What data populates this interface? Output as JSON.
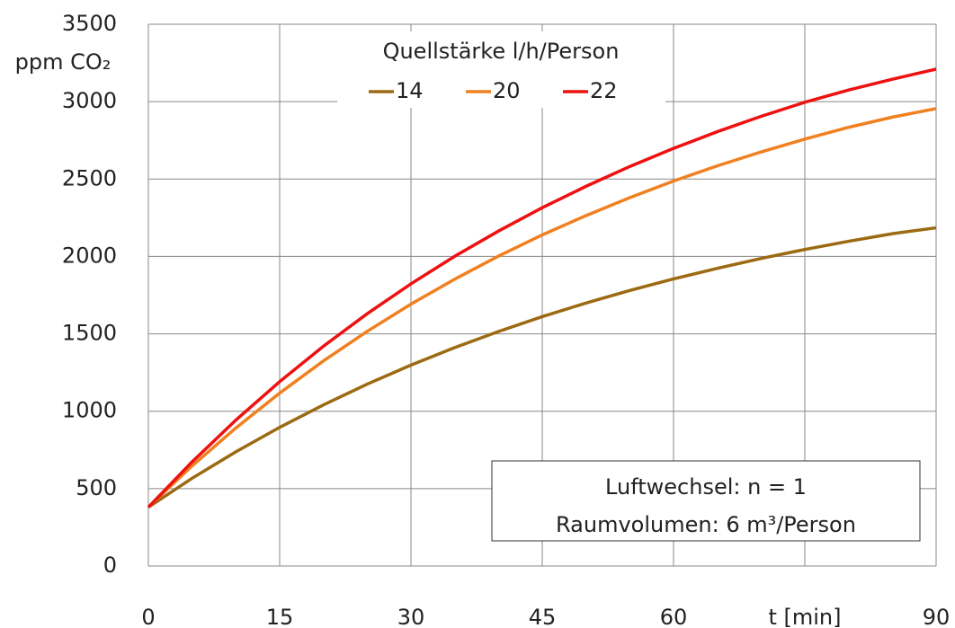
{
  "chart_data": {
    "type": "line",
    "ylabel": "ppm CO₂",
    "legend_title": "Quellstärke l/h/Person",
    "annotations": [
      "Luftwechsel:  n = 1",
      "Raumvolumen: 6 m³/Person"
    ],
    "x": [
      0,
      5,
      10,
      15,
      20,
      25,
      30,
      35,
      40,
      45,
      50,
      55,
      60,
      65,
      70,
      75,
      80,
      85,
      90
    ],
    "series": [
      {
        "name": "14",
        "color": "#9b6a12",
        "values": [
          380,
          567,
          738,
          896,
          1041,
          1175,
          1298,
          1411,
          1515,
          1611,
          1699,
          1780,
          1855,
          1923,
          1987,
          2045,
          2098,
          2147,
          2185
        ]
      },
      {
        "name": "20",
        "color": "#f08020",
        "values": [
          380,
          647,
          892,
          1117,
          1325,
          1516,
          1692,
          1853,
          2002,
          2139,
          2264,
          2380,
          2487,
          2585,
          2675,
          2758,
          2834,
          2900,
          2955
        ]
      },
      {
        "name": "22",
        "color": "#ee1111",
        "values": [
          380,
          673,
          943,
          1191,
          1420,
          1630,
          1823,
          2001,
          2164,
          2315,
          2453,
          2581,
          2698,
          2806,
          2905,
          2996,
          3075,
          3145,
          3210
        ]
      }
    ],
    "xlim": [
      0,
      90
    ],
    "xticks": [
      0,
      15,
      30,
      45,
      60,
      {
        "value": 75,
        "label": "t [min]"
      },
      90
    ],
    "ylim": [
      0,
      3500
    ],
    "yticks": [
      0,
      500,
      1000,
      1500,
      2000,
      2500,
      3000,
      3500
    ],
    "grid": true
  }
}
